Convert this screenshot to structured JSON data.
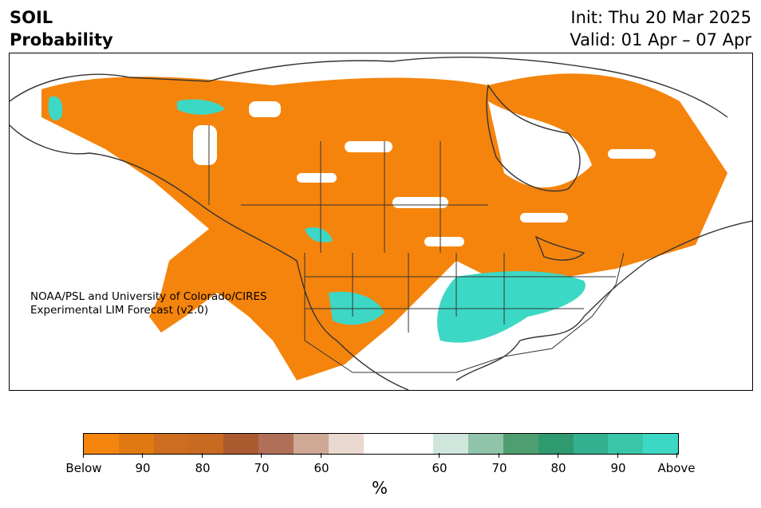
{
  "header": {
    "variable": "SOIL",
    "product": "Probability",
    "init": "Init: Thu 20 Mar 2025",
    "valid": "Valid: 01 Apr – 07 Apr"
  },
  "map": {
    "credit_line1": "NOAA/PSL and University of Colorado/CIRES",
    "credit_line2": "Experimental LIM Forecast (v2.0)",
    "colors": {
      "below_strong": "#f5840c",
      "above_strong": "#3dd8c5",
      "border": "#333333"
    }
  },
  "colorbar": {
    "unit": "%",
    "tick_labels": [
      "Below",
      "90",
      "80",
      "70",
      "60",
      "60",
      "70",
      "80",
      "90",
      "Above"
    ],
    "segments": [
      "#f5840c",
      "#e07a10",
      "#cc6d1f",
      "#c96a21",
      "#aa5a2f",
      "#b07058",
      "#d0a896",
      "#ead9d0",
      "#ffffff",
      "#cfe6dc",
      "#90c4aa",
      "#4f9e71",
      "#2f9970",
      "#33b18f",
      "#39c5a8",
      "#3dd8c5"
    ]
  }
}
